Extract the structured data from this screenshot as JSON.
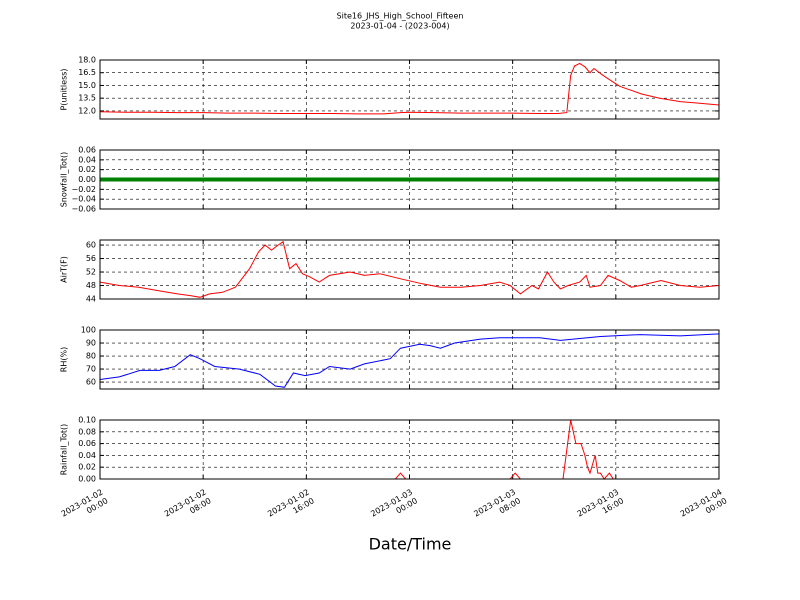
{
  "title": "Site16_JHS_High_School_Fifteen",
  "subtitle": "2023-01-04 - (2023-004)",
  "x_label": "Date/Time",
  "chart_data": [
    {
      "type": "line",
      "y_label": "P(unitless)",
      "ylim": [
        11.05,
        18.0
      ],
      "yticks": [
        {
          "value": 12,
          "label": "12.0"
        },
        {
          "value": 13.5,
          "label": "13.5"
        },
        {
          "value": 15,
          "label": "15.0"
        },
        {
          "value": 16.5,
          "label": "16.5"
        },
        {
          "value": 18,
          "label": "18.0"
        }
      ],
      "grid": true,
      "series": [
        {
          "color": "#ff0000",
          "x": [
            0,
            2,
            4,
            6,
            8,
            10,
            12,
            14,
            16,
            18,
            20,
            22,
            23.3,
            24,
            26,
            28,
            30,
            32,
            34,
            35.5,
            36.2,
            36.5,
            36.8,
            37.2,
            37.6,
            38,
            38.3,
            39,
            40.3,
            42,
            43.4,
            45,
            46.5,
            48
          ],
          "values": [
            11.9,
            11.85,
            11.85,
            11.8,
            11.8,
            11.75,
            11.75,
            11.7,
            11.7,
            11.7,
            11.65,
            11.65,
            11.8,
            11.85,
            11.8,
            11.75,
            11.75,
            11.75,
            11.7,
            11.7,
            11.8,
            16.2,
            17.3,
            17.6,
            17.2,
            16.5,
            17.0,
            16.2,
            14.9,
            14.0,
            13.5,
            13.1,
            12.9,
            12.7
          ]
        }
      ]
    },
    {
      "type": "line",
      "y_label": "Snowfall_Tot()",
      "ylim": [
        -0.06,
        0.06
      ],
      "yticks": [
        {
          "value": -0.06,
          "label": "−0.06"
        },
        {
          "value": -0.04,
          "label": "−0.04"
        },
        {
          "value": -0.02,
          "label": "−0.02"
        },
        {
          "value": 0,
          "label": "0.00"
        },
        {
          "value": 0.02,
          "label": "0.02"
        },
        {
          "value": 0.04,
          "label": "0.04"
        },
        {
          "value": 0.06,
          "label": "0.06"
        }
      ],
      "grid": true,
      "linewidth": 4,
      "series": [
        {
          "color": "#008000",
          "x": [
            0,
            4,
            8,
            12,
            16,
            20,
            24,
            28,
            32,
            36,
            40,
            44,
            48
          ],
          "values": [
            0,
            0,
            0,
            0,
            0,
            0,
            0,
            0,
            0,
            0,
            0,
            0,
            0
          ]
        }
      ]
    },
    {
      "type": "line",
      "y_label": "AirT(F)",
      "ylim": [
        44,
        61.5
      ],
      "yticks": [
        44,
        48,
        52,
        56,
        60
      ],
      "grid": true,
      "series": [
        {
          "color": "#ff0000",
          "x": [
            0,
            1.5,
            3,
            4.5,
            6,
            7,
            7.75,
            8.5,
            9.5,
            10.5,
            11.6,
            12.3,
            12.8,
            13.3,
            13.8,
            14.2,
            14.7,
            15.2,
            15.7,
            16.3,
            17,
            17.8,
            19.4,
            20.5,
            21.7,
            23.3,
            25,
            26.4,
            28,
            29.5,
            31,
            31.8,
            32.6,
            33.5,
            34,
            34.7,
            35.2,
            35.7,
            36.3,
            37.2,
            37.7,
            38,
            38.8,
            39.4,
            40.3,
            41.2,
            41.9,
            43.5,
            45,
            46.5,
            48
          ],
          "values": [
            49,
            48,
            47.5,
            46.5,
            45.5,
            45,
            44.5,
            45.5,
            46,
            47.5,
            53,
            58,
            60,
            58.5,
            60,
            61,
            53,
            54.5,
            51.5,
            50.5,
            49,
            51,
            52,
            51,
            51.5,
            50,
            48.5,
            47.5,
            47.5,
            48,
            49,
            48,
            45.5,
            48,
            47,
            52,
            49,
            47,
            48,
            49,
            51,
            47.5,
            48,
            51,
            49.5,
            47.5,
            48,
            49.5,
            48,
            47.5,
            48
          ]
        }
      ]
    },
    {
      "type": "line",
      "y_label": "RH(%)",
      "ylim": [
        54.7,
        100
      ],
      "yticks": [
        60,
        70,
        80,
        90,
        100
      ],
      "grid": true,
      "series": [
        {
          "color": "#0000ff",
          "x": [
            0,
            1.5,
            3.1,
            4.6,
            5.8,
            7,
            7.75,
            8.9,
            10.8,
            12.4,
            13.6,
            14.3,
            15,
            15.9,
            17,
            17.8,
            19.4,
            20.5,
            22.5,
            23.3,
            24.8,
            25.6,
            26.4,
            27.5,
            29.5,
            31,
            34.1,
            35.7,
            38.8,
            41.9,
            45,
            48
          ],
          "values": [
            62,
            64,
            69,
            69,
            72,
            81,
            78,
            72,
            70,
            66,
            57,
            56,
            67,
            65,
            67,
            72,
            70,
            74,
            78,
            86,
            89,
            88,
            86,
            90,
            93,
            94,
            94,
            92,
            95,
            96.5,
            95.5,
            97
          ]
        }
      ]
    },
    {
      "type": "line",
      "y_label": "Rainfall_Tot()",
      "ylim": [
        0,
        0.1
      ],
      "yticks": [
        {
          "value": 0,
          "label": "0.00"
        },
        {
          "value": 0.02,
          "label": "0.02"
        },
        {
          "value": 0.04,
          "label": "0.04"
        },
        {
          "value": 0.06,
          "label": "0.06"
        },
        {
          "value": 0.08,
          "label": "0.08"
        },
        {
          "value": 0.1,
          "label": "0.10"
        }
      ],
      "grid": true,
      "xlim": [
        0,
        48
      ],
      "xticks": [
        {
          "value": 0,
          "label": "2023-01-02\n00:00"
        },
        {
          "value": 8,
          "label": "2023-01-02\n08:00"
        },
        {
          "value": 16,
          "label": "2023-01-02\n16:00"
        },
        {
          "value": 24,
          "label": "2023-01-03\n00:00"
        },
        {
          "value": 32,
          "label": "2023-01-03\n08:00"
        },
        {
          "value": 40,
          "label": "2023-01-03\n16:00"
        },
        {
          "value": 48,
          "label": "2023-01-04\n00:00"
        }
      ],
      "series": [
        {
          "color": "#ff0000",
          "x": [
            0,
            22.9,
            23.3,
            23.7,
            31.8,
            32.2,
            32.6,
            35.9,
            36.5,
            36.9,
            37.3,
            37.6,
            37.8,
            38.0,
            38.4,
            38.6,
            38.8,
            39.1,
            39.5,
            39.8,
            48
          ],
          "values": [
            0,
            0,
            0.01,
            0,
            0,
            0.01,
            0,
            0,
            0.1,
            0.06,
            0.06,
            0.04,
            0.02,
            0.01,
            0.04,
            0.01,
            0.01,
            0,
            0.01,
            0,
            0
          ]
        }
      ]
    }
  ]
}
